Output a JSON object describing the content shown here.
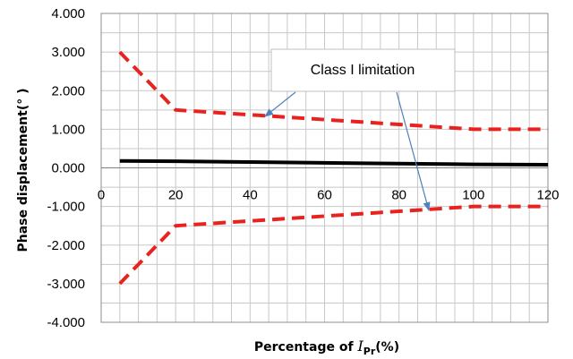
{
  "chart_data": {
    "type": "line",
    "xlabel": {
      "prefix": "Percentage of ",
      "symbol": "I",
      "subscript": "Pr",
      "suffix": "(%)"
    },
    "ylabel": "Phase displacement(°  )",
    "xlim": [
      0,
      120
    ],
    "ylim": [
      -4,
      4
    ],
    "xticks": [
      "0",
      "20",
      "40",
      "60",
      "80",
      "100",
      "120"
    ],
    "yticks": [
      "4.000",
      "3.000",
      "2.000",
      "1.000",
      "0.000",
      "-1.000",
      "-2.000",
      "-3.000",
      "-4.000"
    ],
    "grid": true,
    "series": [
      {
        "role": "upper-limit",
        "color": "#e8231f",
        "dash": true,
        "x": [
          5,
          20,
          100,
          120
        ],
        "y": [
          3.0,
          1.5,
          1.0,
          1.0
        ]
      },
      {
        "role": "lower-limit",
        "color": "#e8231f",
        "dash": true,
        "x": [
          5,
          20,
          100,
          120
        ],
        "y": [
          -3.0,
          -1.5,
          -1.0,
          -1.0
        ]
      },
      {
        "role": "measured",
        "color": "#000000",
        "dash": false,
        "x": [
          5,
          20,
          40,
          60,
          80,
          100,
          120
        ],
        "y": [
          0.18,
          0.17,
          0.15,
          0.13,
          0.11,
          0.09,
          0.08
        ]
      }
    ],
    "annotation": {
      "text": "Class I limitation",
      "arrow_color": "#4f81bd",
      "targets": [
        {
          "x": 44,
          "y": 1.33
        },
        {
          "x": 88,
          "y": -1.1
        }
      ]
    }
  }
}
